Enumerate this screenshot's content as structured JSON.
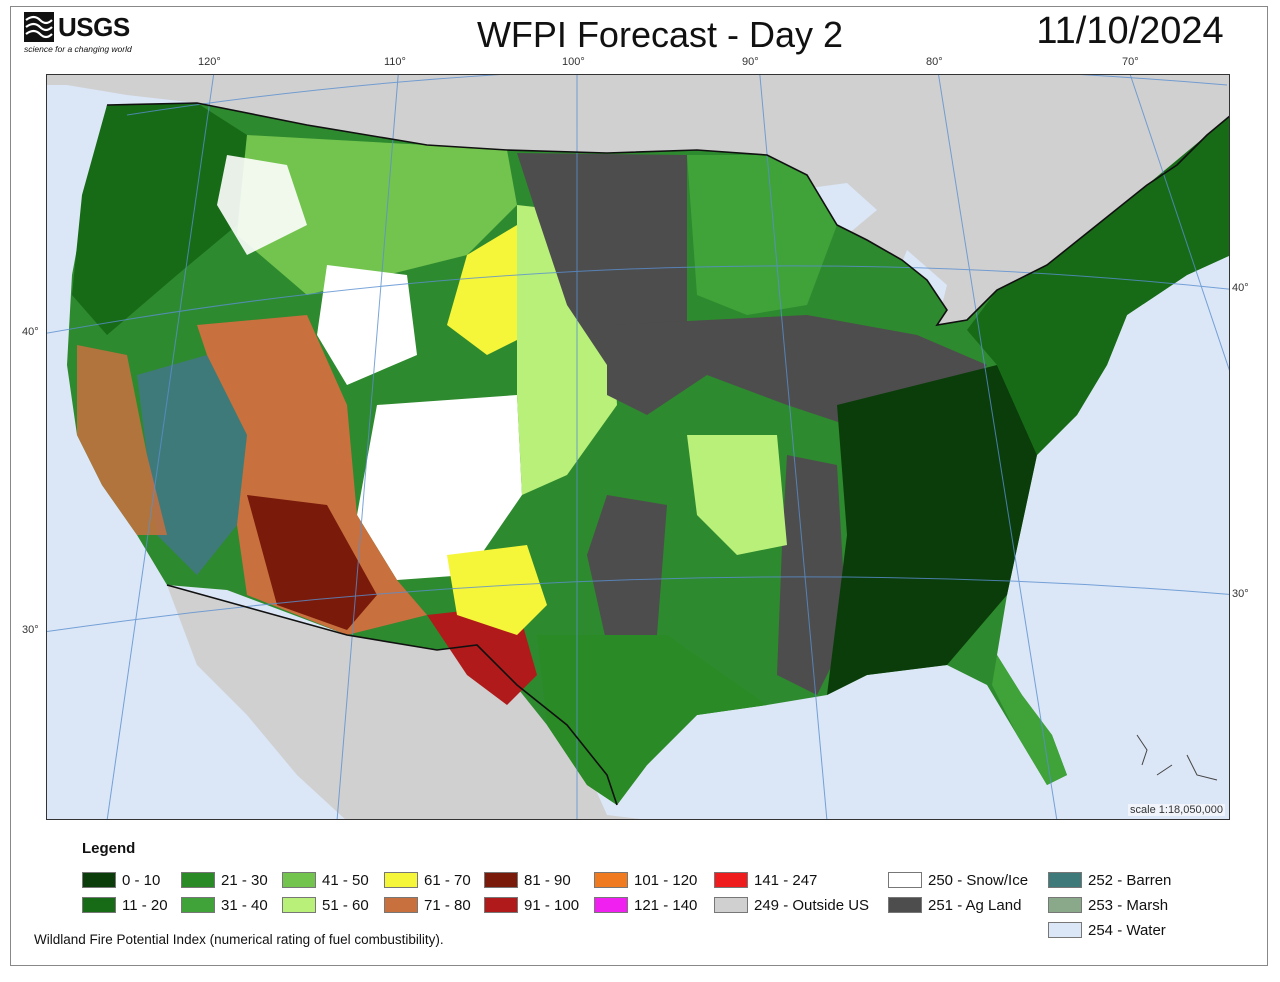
{
  "header": {
    "logo_text": "USGS",
    "logo_tagline": "science for a changing world",
    "title": "WFPI Forecast - Day 2",
    "date": "11/10/2024"
  },
  "graticule": {
    "longitudes": [
      "120°",
      "110°",
      "100°",
      "90°",
      "80°",
      "70°"
    ],
    "latitudes_left": [
      "40°",
      "30°"
    ],
    "latitudes_right": [
      "40°",
      "30°"
    ]
  },
  "map": {
    "scale_text": "scale 1:18,050,000"
  },
  "legend": {
    "title": "Legend",
    "items": [
      {
        "label": "0 - 10",
        "color": "#0b3d0b"
      },
      {
        "label": "11 - 20",
        "color": "#176b17"
      },
      {
        "label": "21 - 30",
        "color": "#2a8a26"
      },
      {
        "label": "31 - 40",
        "color": "#3fa33a"
      },
      {
        "label": "41 - 50",
        "color": "#72c44e"
      },
      {
        "label": "51 - 60",
        "color": "#b8f07a"
      },
      {
        "label": "61 - 70",
        "color": "#f5f53a"
      },
      {
        "label": "71 - 80",
        "color": "#c8703e"
      },
      {
        "label": "81 - 90",
        "color": "#7a1a0a"
      },
      {
        "label": "91 - 100",
        "color": "#b01a1a"
      },
      {
        "label": "101 - 120",
        "color": "#f07a20"
      },
      {
        "label": "121 - 140",
        "color": "#f020f0"
      },
      {
        "label": "141 - 247",
        "color": "#ee1c1c"
      },
      {
        "label": "249 - Outside US",
        "color": "#d0d0d0"
      },
      {
        "label": "250 - Snow/Ice",
        "color": "#ffffff"
      },
      {
        "label": "251 - Ag Land",
        "color": "#4d4d4d"
      },
      {
        "label": "252 - Barren",
        "color": "#3f7a7a"
      },
      {
        "label": "253 - Marsh",
        "color": "#8aa88a"
      },
      {
        "label": "254 - Water",
        "color": "#dbe6f6"
      }
    ]
  },
  "footnote": "Wildland Fire Potential Index (numerical rating of fuel combustibility)."
}
